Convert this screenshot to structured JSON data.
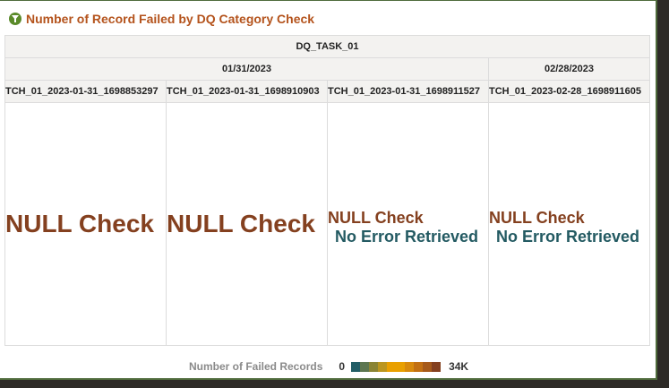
{
  "title": "Number of Record Failed by DQ Category Check",
  "icons": {
    "title": "filter-icon"
  },
  "table": {
    "task": "DQ_TASK_01",
    "dates": [
      "01/31/2023",
      "02/28/2023"
    ],
    "batches": [
      "TCH_01_2023-01-31_1698853297",
      "TCH_01_2023-01-31_1698910903",
      "TCH_01_2023-01-31_1698911527",
      "TCH_01_2023-02-28_1698911605"
    ],
    "cells": [
      {
        "category": "NULL Check",
        "message": ""
      },
      {
        "category": "NULL Check",
        "message": ""
      },
      {
        "category": "NULL Check",
        "message": "No Error Retrieved"
      },
      {
        "category": "NULL Check",
        "message": "No Error Retrieved"
      }
    ]
  },
  "legend": {
    "label": "Number of Failed Records",
    "min": "0",
    "max": "34K",
    "colors": [
      "#225e66",
      "#5c7650",
      "#8a8434",
      "#bb961f",
      "#e9a000",
      "#e9a000",
      "#d88a0c",
      "#c27012",
      "#a65a1a",
      "#84401f"
    ]
  }
}
